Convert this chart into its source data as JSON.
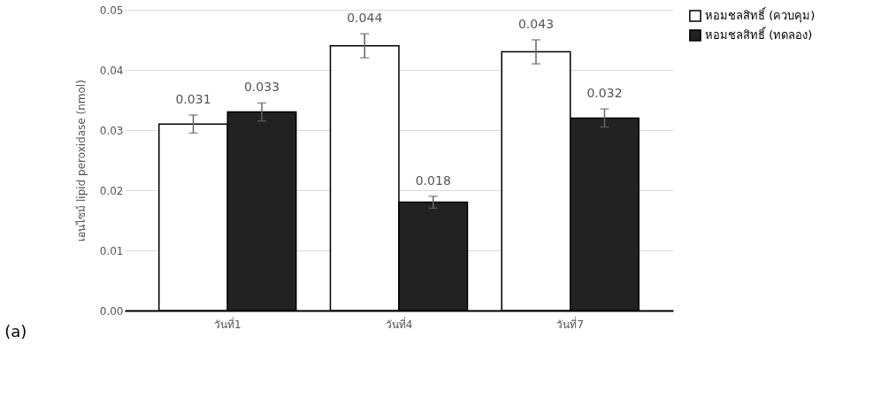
{
  "chart_data": {
    "type": "bar",
    "ylabel": "เอนไซม์ lipid peroxidase (nmol)",
    "categories": [
      "วันที่1",
      "วันที่4",
      "วันที่7"
    ],
    "series": [
      {
        "name": "หอมชลสิทธิ์ (ควบคุม)",
        "color": "#ffffff",
        "values": [
          0.031,
          0.044,
          0.043
        ],
        "errors": [
          0.0015,
          0.002,
          0.002
        ]
      },
      {
        "name": "หอมชลสิทธิ์ (ทดลอง)",
        "color": "#222222",
        "values": [
          0.033,
          0.018,
          0.032
        ],
        "errors": [
          0.0015,
          0.001,
          0.0015
        ]
      }
    ],
    "ylim": [
      0,
      0.05
    ],
    "yticks": [
      {
        "value": 0,
        "label": "0.00"
      },
      {
        "value": 0.01,
        "label": "0.01"
      },
      {
        "value": 0.02,
        "label": "0.02"
      },
      {
        "value": 0.03,
        "label": "0.03"
      },
      {
        "value": 0.04,
        "label": "0.04"
      },
      {
        "value": 0.05,
        "label": "0.05"
      }
    ],
    "grid": "y",
    "legend": "right",
    "data_labels": true,
    "annotations": [
      "(a)"
    ]
  }
}
